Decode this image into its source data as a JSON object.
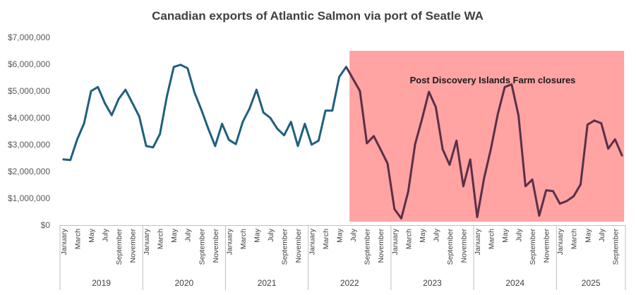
{
  "chart_data": {
    "type": "line",
    "title": "Canadian  exports of Atlantic Salmon via port of Seatle WA",
    "xlabel": "",
    "ylabel": "",
    "ylim": [
      0,
      7000000
    ],
    "yticks": [
      0,
      1000000,
      2000000,
      3000000,
      4000000,
      5000000,
      6000000,
      7000000
    ],
    "ytick_labels": [
      "$0",
      "$1,000,000",
      "$2,000,000",
      "$3,000,000",
      "$4,000,000",
      "$5,000,000",
      "$6,000,000",
      "$7,000,000"
    ],
    "grid": false,
    "years": [
      "2019",
      "2020",
      "2021",
      "2022",
      "2023",
      "2024",
      "2025"
    ],
    "month_labels": [
      "January",
      "March",
      "May",
      "July",
      "September",
      "November"
    ],
    "month_labels_2025": [
      "January",
      "March",
      "May",
      "July",
      "September"
    ],
    "months_per_year": [
      12,
      12,
      12,
      12,
      12,
      12,
      10
    ],
    "colors": {
      "pre": "#1f5f7f",
      "post": "#5a2f48",
      "highlight": "#ffa3a3"
    },
    "series": [
      {
        "name": "Exports",
        "values": [
          2450000,
          2430000,
          3200000,
          3800000,
          5000000,
          5150000,
          4550000,
          4100000,
          4700000,
          5050000,
          4550000,
          4050000,
          2950000,
          2900000,
          3400000,
          4800000,
          5900000,
          5980000,
          5850000,
          4950000,
          4300000,
          3600000,
          2950000,
          3780000,
          3180000,
          3020000,
          3850000,
          4350000,
          5050000,
          4200000,
          4000000,
          3600000,
          3350000,
          3850000,
          2950000,
          3780000,
          3000000,
          3150000,
          4270000,
          4270000,
          5530000,
          5900000,
          5450000,
          5000000,
          3050000,
          3320000,
          2820000,
          2300000,
          600000,
          250000,
          1250000,
          3020000,
          3950000,
          4970000,
          4400000,
          2830000,
          2250000,
          3150000,
          1450000,
          2450000,
          300000,
          1750000,
          2850000,
          4150000,
          5150000,
          5250000,
          4080000,
          1450000,
          1700000,
          350000,
          1300000,
          1270000,
          800000,
          900000,
          1080000,
          1520000,
          3750000,
          3900000,
          3800000,
          2850000,
          3200000,
          2600000
        ]
      }
    ],
    "highlight": {
      "start_index": 42,
      "end_index": 81
    },
    "annotations": [
      {
        "text": "Post Discovery Islands Farm closures"
      }
    ]
  }
}
